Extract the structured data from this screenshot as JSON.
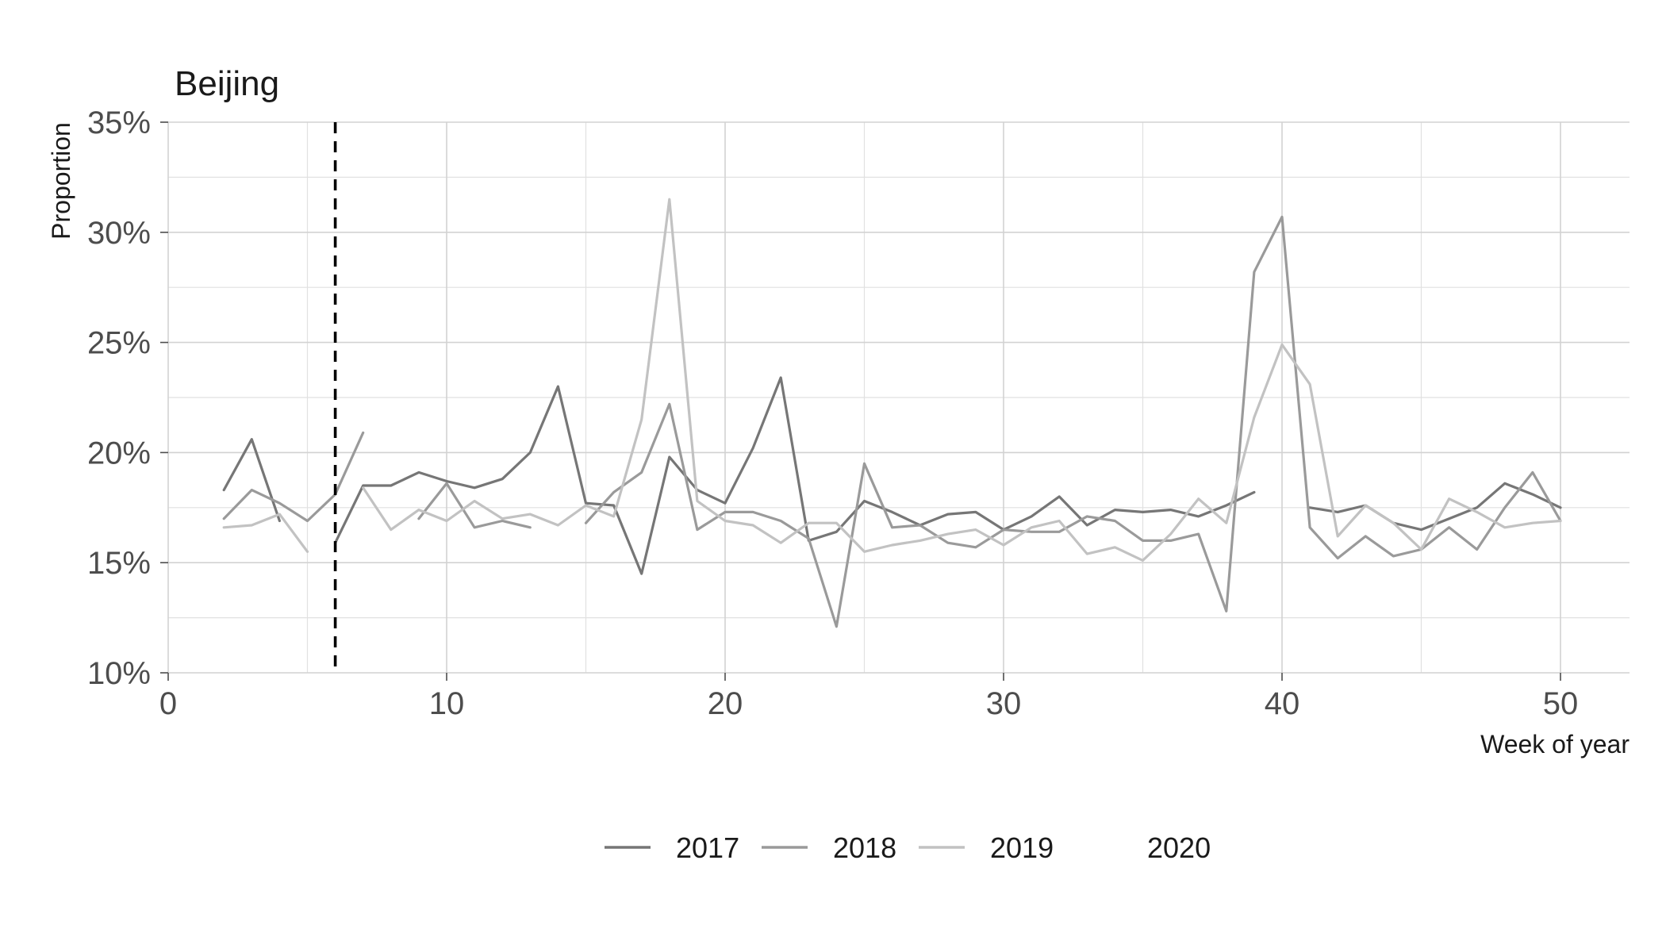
{
  "chart_data": {
    "type": "line",
    "title": "Beijing",
    "xlabel": "Week of year",
    "ylabel": "Proportion",
    "xlim": [
      0,
      52.5
    ],
    "ylim": [
      10,
      35
    ],
    "x_ticks": [
      0,
      10,
      20,
      30,
      40,
      50
    ],
    "x_tick_labels": [
      "0",
      "10",
      "20",
      "30",
      "40",
      "50"
    ],
    "y_ticks": [
      10,
      15,
      20,
      25,
      30,
      35
    ],
    "y_tick_labels": [
      "10%",
      "15%",
      "20%",
      "25%",
      "30%",
      "35%"
    ],
    "grid": true,
    "legend_position": "bottom",
    "reference_line": {
      "x": 6,
      "style": "dashed",
      "color": "#000000"
    },
    "series": [
      {
        "name": "2017",
        "color": "#767676",
        "points": [
          [
            2,
            18.3
          ],
          [
            3,
            20.6
          ],
          [
            4,
            16.9
          ],
          [
            null,
            null
          ],
          [
            6,
            15.9
          ],
          [
            7,
            18.5
          ],
          [
            8,
            18.5
          ],
          [
            9,
            19.1
          ],
          [
            10,
            18.7
          ],
          [
            11,
            18.4
          ],
          [
            12,
            18.8
          ],
          [
            13,
            20.0
          ],
          [
            14,
            23.0
          ],
          [
            15,
            17.7
          ],
          [
            16,
            17.6
          ],
          [
            17,
            14.5
          ],
          [
            18,
            19.8
          ],
          [
            19,
            18.3
          ],
          [
            20,
            17.7
          ],
          [
            21,
            20.2
          ],
          [
            22,
            23.4
          ],
          [
            23,
            16.0
          ],
          [
            24,
            16.4
          ],
          [
            25,
            17.8
          ],
          [
            26,
            17.3
          ],
          [
            27,
            16.7
          ],
          [
            28,
            17.2
          ],
          [
            29,
            17.3
          ],
          [
            30,
            16.5
          ],
          [
            31,
            17.1
          ],
          [
            32,
            18.0
          ],
          [
            33,
            16.7
          ],
          [
            34,
            17.4
          ],
          [
            35,
            17.3
          ],
          [
            36,
            17.4
          ],
          [
            37,
            17.1
          ],
          [
            38,
            17.6
          ],
          [
            39,
            18.2
          ],
          [
            null,
            null
          ],
          [
            41,
            17.5
          ],
          [
            42,
            17.3
          ],
          [
            43,
            17.6
          ],
          [
            44,
            16.8
          ],
          [
            45,
            16.5
          ],
          [
            46,
            17.0
          ],
          [
            47,
            17.5
          ],
          [
            48,
            18.6
          ],
          [
            49,
            18.1
          ],
          [
            50,
            17.5
          ]
        ]
      },
      {
        "name": "2018",
        "color": "#9a9a9a",
        "points": [
          [
            2,
            17.0
          ],
          [
            3,
            18.3
          ],
          [
            4,
            17.7
          ],
          [
            5,
            16.9
          ],
          [
            6,
            18.1
          ],
          [
            7,
            20.9
          ],
          [
            null,
            null
          ],
          [
            9,
            17.0
          ],
          [
            10,
            18.6
          ],
          [
            11,
            16.6
          ],
          [
            12,
            16.9
          ],
          [
            13,
            16.6
          ],
          [
            null,
            null
          ],
          [
            15,
            16.8
          ],
          [
            16,
            18.2
          ],
          [
            17,
            19.1
          ],
          [
            18,
            22.2
          ],
          [
            19,
            16.5
          ],
          [
            20,
            17.3
          ],
          [
            21,
            17.3
          ],
          [
            22,
            16.9
          ],
          [
            23,
            16.1
          ],
          [
            24,
            12.1
          ],
          [
            25,
            19.5
          ],
          [
            26,
            16.6
          ],
          [
            27,
            16.7
          ],
          [
            28,
            15.9
          ],
          [
            29,
            15.7
          ],
          [
            30,
            16.5
          ],
          [
            31,
            16.4
          ],
          [
            32,
            16.4
          ],
          [
            33,
            17.1
          ],
          [
            34,
            16.9
          ],
          [
            35,
            16.0
          ],
          [
            36,
            16.0
          ],
          [
            37,
            16.3
          ],
          [
            38,
            12.8
          ],
          [
            39,
            28.2
          ],
          [
            40,
            30.7
          ],
          [
            41,
            16.6
          ],
          [
            42,
            15.2
          ],
          [
            43,
            16.2
          ],
          [
            44,
            15.3
          ],
          [
            45,
            15.6
          ],
          [
            46,
            16.6
          ],
          [
            47,
            15.6
          ],
          [
            48,
            17.5
          ],
          [
            49,
            19.1
          ],
          [
            50,
            16.9
          ]
        ]
      },
      {
        "name": "2019",
        "color": "#c2c2c2",
        "points": [
          [
            2,
            16.6
          ],
          [
            3,
            16.7
          ],
          [
            4,
            17.2
          ],
          [
            5,
            15.5
          ],
          [
            null,
            null
          ],
          [
            7,
            18.4
          ],
          [
            8,
            16.5
          ],
          [
            9,
            17.4
          ],
          [
            10,
            16.9
          ],
          [
            11,
            17.8
          ],
          [
            12,
            17.0
          ],
          [
            13,
            17.2
          ],
          [
            14,
            16.7
          ],
          [
            15,
            17.6
          ],
          [
            16,
            17.1
          ],
          [
            17,
            21.5
          ],
          [
            18,
            31.5
          ],
          [
            19,
            17.8
          ],
          [
            20,
            16.9
          ],
          [
            21,
            16.7
          ],
          [
            22,
            15.9
          ],
          [
            23,
            16.8
          ],
          [
            24,
            16.8
          ],
          [
            25,
            15.5
          ],
          [
            26,
            15.8
          ],
          [
            27,
            16.0
          ],
          [
            28,
            16.3
          ],
          [
            29,
            16.5
          ],
          [
            30,
            15.8
          ],
          [
            31,
            16.6
          ],
          [
            32,
            16.9
          ],
          [
            33,
            15.4
          ],
          [
            34,
            15.7
          ],
          [
            35,
            15.1
          ],
          [
            36,
            16.3
          ],
          [
            37,
            17.9
          ],
          [
            38,
            16.8
          ],
          [
            39,
            21.6
          ],
          [
            40,
            24.9
          ],
          [
            41,
            23.1
          ],
          [
            42,
            16.2
          ],
          [
            43,
            17.6
          ],
          [
            44,
            16.8
          ],
          [
            45,
            15.6
          ],
          [
            46,
            17.9
          ],
          [
            47,
            17.3
          ],
          [
            48,
            16.6
          ],
          [
            49,
            16.8
          ],
          [
            50,
            16.9
          ]
        ]
      },
      {
        "name": "2020",
        "color": "#ffffff",
        "points": []
      }
    ]
  }
}
